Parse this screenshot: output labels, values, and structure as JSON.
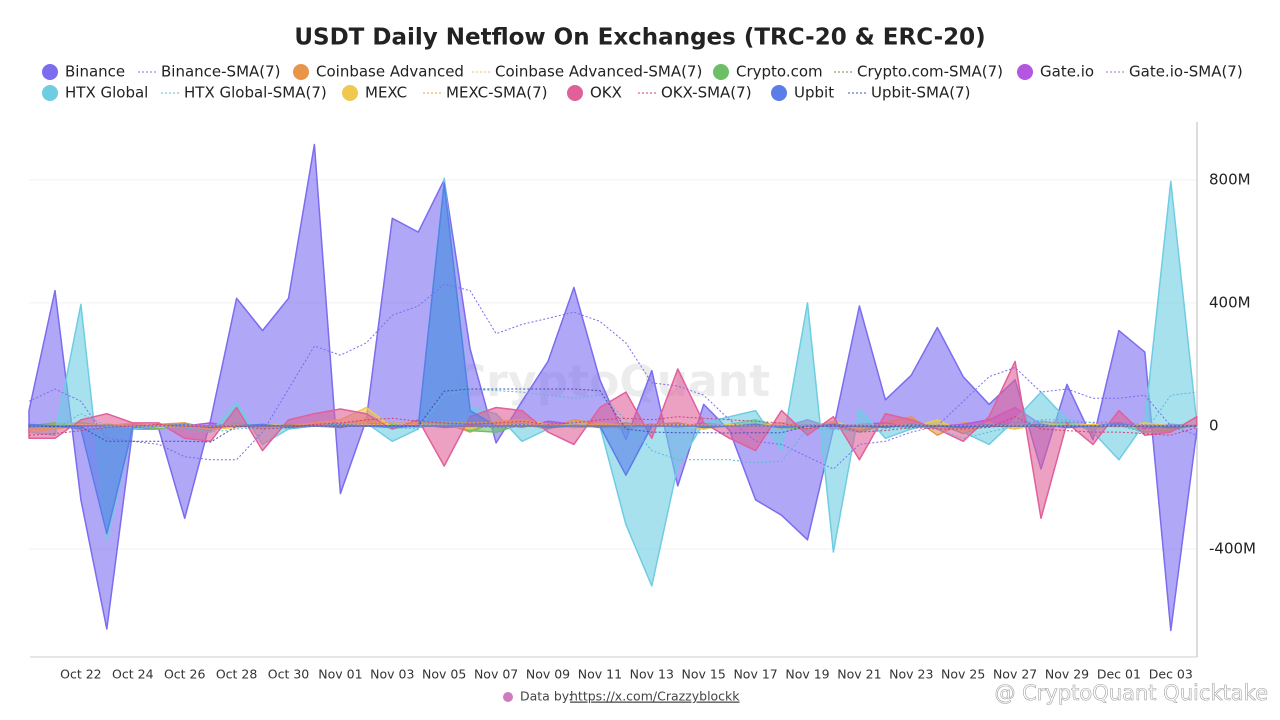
{
  "chart_data": {
    "type": "area",
    "title": "USDT Daily Netflow On Exchanges (TRC-20 & ERC-20)",
    "categories": [
      null,
      null,
      "Oct 22",
      null,
      "Oct 24",
      null,
      "Oct 26",
      null,
      "Oct 28",
      null,
      "Oct 30",
      null,
      "Nov 01",
      null,
      "Nov 03",
      null,
      "Nov 05",
      null,
      "Nov 07",
      null,
      "Nov 09",
      null,
      "Nov 11",
      null,
      "Nov 13",
      null,
      "Nov 15",
      null,
      "Nov 17",
      null,
      "Nov 19",
      null,
      "Nov 21",
      null,
      "Nov 23",
      null,
      "Nov 25",
      null,
      "Nov 27",
      null,
      "Nov 29",
      null,
      "Dec 01",
      null,
      "Dec 03",
      null
    ],
    "ylim": [
      -751,
      988
    ],
    "yticks": [
      {
        "value": -400,
        "label": "-400M"
      },
      0,
      {
        "value": 400,
        "label": "400M"
      },
      {
        "value": 800,
        "label": "800M"
      }
    ],
    "grid": true,
    "y_axis_side": "right",
    "series": [
      {
        "name": "Binance",
        "color": "#7b6cf0",
        "style": "area",
        "values": [
          50,
          440,
          -240,
          -660,
          -10,
          -10,
          -300,
          20,
          415,
          310,
          415,
          915,
          -220,
          20,
          675,
          630,
          800,
          250,
          -55,
          80,
          210,
          450,
          150,
          -45,
          180,
          -195,
          70,
          -15,
          -240,
          -290,
          -370,
          -10,
          390,
          85,
          165,
          320,
          160,
          70,
          150,
          -140,
          135,
          -45,
          310,
          240,
          -665,
          -15
        ]
      },
      {
        "name": "Binance-SMA(7)",
        "color": "#7b6cf0",
        "style": "dotted-line",
        "values": [
          80,
          120,
          80,
          -40,
          -50,
          -60,
          -100,
          -110,
          -110,
          -20,
          120,
          260,
          230,
          270,
          360,
          390,
          460,
          440,
          300,
          330,
          350,
          370,
          340,
          270,
          140,
          130,
          100,
          20,
          -50,
          -60,
          -100,
          -140,
          -60,
          -50,
          -20,
          0,
          80,
          160,
          190,
          110,
          120,
          90,
          90,
          100,
          0,
          -30
        ]
      },
      {
        "name": "Coinbase Advanced",
        "color": "#e8954a",
        "style": "area",
        "values": [
          -10,
          5,
          10,
          0,
          -5,
          5,
          10,
          -10,
          5,
          -5,
          0,
          10,
          5,
          20,
          -10,
          5,
          10,
          -20,
          15,
          5,
          -10,
          20,
          5,
          -10,
          5,
          10,
          -5,
          0,
          10,
          -10,
          20,
          -5,
          -20,
          10,
          30,
          -30,
          10,
          5,
          -10,
          15,
          5,
          -5,
          10,
          -10,
          5,
          0
        ]
      },
      {
        "name": "Coinbase Advanced-SMA(7)",
        "color": "#e8c060",
        "style": "dotted-line",
        "values": [
          0,
          2,
          3,
          2,
          1,
          1,
          3,
          1,
          2,
          0,
          1,
          2,
          3,
          5,
          3,
          4,
          2,
          0,
          3,
          4,
          2,
          3,
          4,
          2,
          3,
          5,
          3,
          2,
          3,
          1,
          2,
          3,
          0,
          2,
          4,
          1,
          2,
          3,
          1,
          2,
          3,
          1,
          2,
          1,
          0,
          1
        ]
      },
      {
        "name": "Crypto.com",
        "color": "#6dbf67",
        "style": "area",
        "values": [
          0,
          10,
          -5,
          5,
          0,
          -10,
          5,
          -15,
          10,
          -5,
          5,
          0,
          -5,
          10,
          5,
          -5,
          10,
          -15,
          -20,
          5,
          10,
          -5,
          0,
          10,
          -5,
          5,
          -10,
          5,
          20,
          -5,
          -10,
          15,
          -20,
          5,
          -10,
          10,
          -25,
          5,
          10,
          -5,
          15,
          -10,
          5,
          -20,
          -15,
          5
        ]
      },
      {
        "name": "Crypto.com-SMA(7)",
        "color": "#8a7a50",
        "style": "dotted-line",
        "values": [
          0,
          2,
          1,
          1,
          0,
          -2,
          -1,
          -3,
          -1,
          -2,
          -1,
          0,
          -1,
          1,
          1,
          0,
          1,
          -2,
          -4,
          -2,
          0,
          -1,
          -1,
          0,
          1,
          1,
          0,
          0,
          3,
          1,
          0,
          2,
          -3,
          -2,
          -4,
          -2,
          -5,
          -3,
          -1,
          -2,
          1,
          -1,
          0,
          -3,
          -4,
          -3
        ]
      },
      {
        "name": "Gate.io",
        "color": "#b556e0",
        "style": "area",
        "values": [
          -10,
          -5,
          5,
          0,
          5,
          -5,
          0,
          10,
          -5,
          5,
          0,
          5,
          -5,
          10,
          0,
          5,
          -5,
          0,
          10,
          -5,
          15,
          5,
          -5,
          0,
          5,
          -5,
          10,
          0,
          5,
          -5,
          20,
          -10,
          5,
          10,
          -5,
          0,
          5,
          20,
          60,
          5,
          -5,
          0,
          10,
          -10,
          5,
          0
        ]
      },
      {
        "name": "Gate.io-SMA(7)",
        "color": "#a070d0",
        "style": "dotted-line",
        "values": [
          -5,
          -4,
          -2,
          -1,
          0,
          -1,
          0,
          1,
          0,
          1,
          1,
          2,
          1,
          2,
          1,
          2,
          1,
          1,
          2,
          1,
          3,
          3,
          2,
          2,
          2,
          1,
          2,
          1,
          2,
          1,
          4,
          2,
          2,
          3,
          2,
          1,
          2,
          5,
          12,
          13,
          12,
          12,
          13,
          4,
          2,
          1
        ]
      },
      {
        "name": "HTX Global",
        "color": "#6ecde3",
        "style": "area",
        "values": [
          -20,
          -30,
          395,
          -370,
          -10,
          0,
          -10,
          -20,
          75,
          -60,
          -10,
          0,
          5,
          10,
          -50,
          -10,
          805,
          60,
          40,
          -50,
          -10,
          10,
          0,
          -320,
          -520,
          -130,
          10,
          30,
          50,
          -80,
          400,
          -410,
          55,
          -40,
          -10,
          10,
          -20,
          -60,
          20,
          110,
          20,
          -20,
          -110,
          10,
          795,
          10
        ]
      },
      {
        "name": "HTX Global-SMA(7)",
        "color": "#5ab8d8",
        "style": "dotted-line",
        "values": [
          0,
          -10,
          40,
          0,
          0,
          0,
          -5,
          -20,
          -10,
          -5,
          -10,
          0,
          5,
          0,
          -5,
          -10,
          100,
          120,
          115,
          110,
          100,
          90,
          100,
          20,
          -80,
          -110,
          -110,
          -110,
          -120,
          -115,
          -10,
          -10,
          -20,
          -10,
          0,
          -10,
          -40,
          -20,
          0,
          20,
          20,
          10,
          0,
          -20,
          100,
          110
        ]
      },
      {
        "name": "MEXC",
        "color": "#f0c850",
        "style": "area",
        "values": [
          -20,
          -10,
          5,
          0,
          10,
          -5,
          0,
          -10,
          -5,
          5,
          0,
          10,
          20,
          60,
          -5,
          10,
          5,
          -10,
          15,
          20,
          5,
          -5,
          10,
          0,
          -5,
          5,
          -10,
          5,
          0,
          10,
          -5,
          15,
          -10,
          5,
          -5,
          20,
          -20,
          10,
          -10,
          5,
          0,
          5,
          -5,
          10,
          0,
          -5
        ]
      },
      {
        "name": "MEXC-SMA(7)",
        "color": "#e8a040",
        "style": "dotted-line",
        "values": [
          -10,
          -8,
          -5,
          -4,
          -3,
          -3,
          -2,
          -3,
          -2,
          -1,
          -2,
          0,
          3,
          12,
          11,
          12,
          13,
          11,
          12,
          14,
          6,
          4,
          5,
          6,
          4,
          3,
          2,
          1,
          0,
          1,
          0,
          3,
          2,
          2,
          1,
          4,
          1,
          2,
          1,
          1,
          0,
          1,
          -1,
          1,
          1,
          0
        ]
      },
      {
        "name": "OKX",
        "color": "#e0609a",
        "style": "area",
        "values": [
          -40,
          -40,
          20,
          40,
          10,
          10,
          -40,
          -50,
          60,
          -80,
          20,
          40,
          55,
          40,
          -10,
          20,
          -130,
          30,
          60,
          50,
          -20,
          -60,
          60,
          110,
          -40,
          185,
          10,
          -40,
          -80,
          50,
          -30,
          30,
          -110,
          40,
          20,
          -10,
          -50,
          30,
          210,
          -300,
          10,
          -60,
          50,
          -30,
          -20,
          30
        ]
      },
      {
        "name": "OKX-SMA(7)",
        "color": "#d04070",
        "style": "dotted-line",
        "values": [
          -30,
          -25,
          -15,
          -5,
          0,
          5,
          0,
          -5,
          0,
          -10,
          -5,
          5,
          10,
          20,
          25,
          15,
          10,
          5,
          10,
          15,
          5,
          10,
          20,
          25,
          20,
          30,
          25,
          20,
          15,
          10,
          -10,
          5,
          -20,
          -15,
          -5,
          -10,
          -10,
          -5,
          30,
          -10,
          -15,
          -20,
          -20,
          -25,
          -30,
          -5
        ]
      },
      {
        "name": "Upbit",
        "color": "#5a7de8",
        "style": "area",
        "values": [
          5,
          0,
          -10,
          -350,
          -5,
          0,
          5,
          -5,
          0,
          5,
          -5,
          0,
          5,
          0,
          -5,
          0,
          790,
          50,
          0,
          5,
          -5,
          0,
          0,
          -160,
          0,
          5,
          -5,
          0,
          5,
          -5,
          0,
          5,
          0,
          -5,
          5,
          0,
          -5,
          5,
          0,
          5,
          -5,
          0,
          5,
          0,
          -5,
          0
        ]
      },
      {
        "name": "Upbit-SMA(7)",
        "color": "#4050b0",
        "style": "dotted-line",
        "values": [
          0,
          -2,
          -3,
          -50,
          -50,
          -50,
          -50,
          -52,
          -1,
          0,
          0,
          0,
          0,
          0,
          0,
          0,
          113,
          120,
          120,
          120,
          120,
          120,
          115,
          -10,
          -20,
          -22,
          -22,
          -23,
          -22,
          -22,
          0,
          0,
          0,
          0,
          0,
          0,
          0,
          0,
          0,
          0,
          0,
          0,
          0,
          0,
          0,
          0
        ]
      }
    ],
    "source_label": "Data by:",
    "source_link": "https://x.com/Crazzyblockk",
    "watermark": "CryptoQuant",
    "credit": "@ CryptoQuant Quicktake"
  }
}
